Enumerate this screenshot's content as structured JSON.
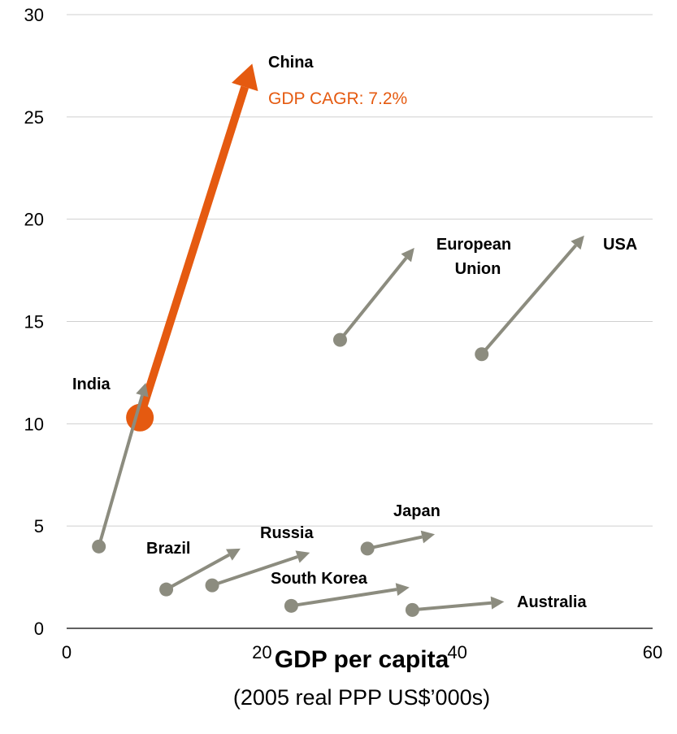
{
  "chart_data": {
    "type": "scatter",
    "xlabel": "GDP per capita",
    "xlabel_sub": "(2005 real PPP US$’000s)",
    "xlim": [
      0,
      60
    ],
    "ylim": [
      0,
      30
    ],
    "xticks": [
      "0",
      "20",
      "40",
      "60"
    ],
    "yticks": [
      "0",
      "5",
      "10",
      "15",
      "20",
      "25",
      "30"
    ],
    "grid": true,
    "highlight_color": "#E55A10",
    "base_color": "#8C8C7F",
    "series": [
      {
        "name": "China",
        "label": "China",
        "sublabel": "GDP CAGR: 7.2%",
        "highlight": true,
        "start": [
          7.5,
          10.3
        ],
        "end": [
          19.0,
          27.6
        ]
      },
      {
        "name": "India",
        "label": "India",
        "highlight": false,
        "start": [
          3.3,
          4.0
        ],
        "end": [
          8.1,
          12.0
        ]
      },
      {
        "name": "European Union",
        "label_lines": [
          "European",
          "Union"
        ],
        "highlight": false,
        "start": [
          28.0,
          14.1
        ],
        "end": [
          35.6,
          18.6
        ]
      },
      {
        "name": "USA",
        "label": "USA",
        "highlight": false,
        "start": [
          42.5,
          13.4
        ],
        "end": [
          53.0,
          19.2
        ]
      },
      {
        "name": "Brazil",
        "label": "Brazil",
        "highlight": false,
        "start": [
          10.2,
          1.9
        ],
        "end": [
          17.8,
          3.9
        ]
      },
      {
        "name": "Russia",
        "label": "Russia",
        "highlight": false,
        "start": [
          14.9,
          2.1
        ],
        "end": [
          24.9,
          3.7
        ]
      },
      {
        "name": "Japan",
        "label": "Japan",
        "highlight": false,
        "start": [
          30.8,
          3.9
        ],
        "end": [
          37.7,
          4.6
        ]
      },
      {
        "name": "South Korea",
        "label": "South Korea",
        "highlight": false,
        "start": [
          23.0,
          1.1
        ],
        "end": [
          35.1,
          2.0
        ]
      },
      {
        "name": "Australia",
        "label": "Australia",
        "highlight": false,
        "start": [
          35.4,
          0.9
        ],
        "end": [
          44.8,
          1.3
        ]
      }
    ]
  }
}
